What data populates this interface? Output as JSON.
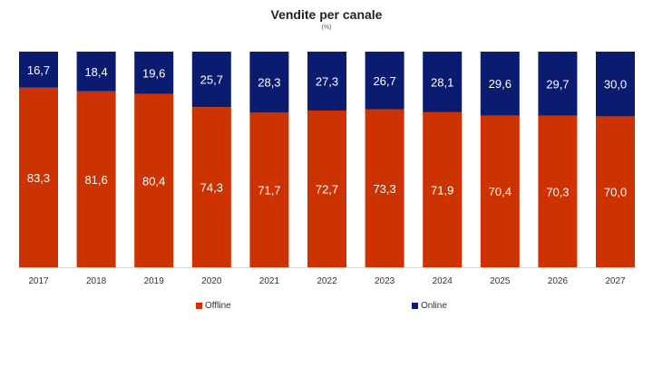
{
  "chart_data": {
    "type": "bar",
    "stacked": true,
    "title": "Vendite per canale",
    "subtitle": "(%)",
    "categories": [
      "2017",
      "2018",
      "2019",
      "2020",
      "2021",
      "2022",
      "2023",
      "2024",
      "2025",
      "2026",
      "2027"
    ],
    "series": [
      {
        "name": "Offline",
        "color": "#CC3300",
        "values": [
          83.3,
          81.6,
          80.4,
          74.3,
          71.7,
          72.7,
          73.3,
          71.9,
          70.4,
          70.3,
          70.0
        ]
      },
      {
        "name": "Online",
        "color": "#0B1B6F",
        "values": [
          16.7,
          18.4,
          19.6,
          25.7,
          28.3,
          27.3,
          26.7,
          28.1,
          29.6,
          29.7,
          30.0
        ]
      }
    ],
    "ylim": [
      0,
      100
    ],
    "grid": false,
    "legend": "bottom",
    "data_labels": true,
    "decimal_separator": ","
  }
}
